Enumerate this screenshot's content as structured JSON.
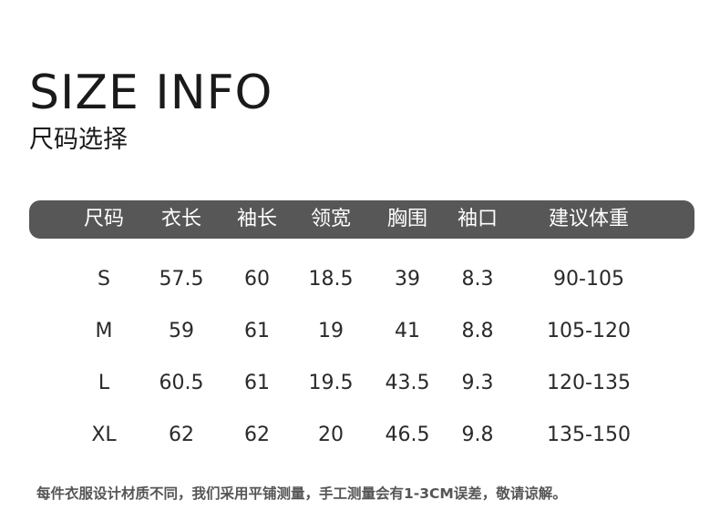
{
  "title": "SIZE INFO",
  "subtitle": "尺码选择",
  "table": {
    "headers": [
      "尺码",
      "衣长",
      "袖长",
      "领宽",
      "胸围",
      "袖口",
      "建议体重"
    ],
    "rows": [
      [
        "S",
        "57.5",
        "60",
        "18.5",
        "39",
        "8.3",
        "90-105"
      ],
      [
        "M",
        "59",
        "61",
        "19",
        "41",
        "8.8",
        "105-120"
      ],
      [
        "L",
        "60.5",
        "61",
        "19.5",
        "43.5",
        "9.3",
        "120-135"
      ],
      [
        "XL",
        "62",
        "62",
        "20",
        "46.5",
        "9.8",
        "135-150"
      ]
    ]
  },
  "note": "每件衣服设计材质不同，我们采用平铺测量，手工测量会有1-3CM误差，敬请谅解。",
  "colors": {
    "header_bg": "#575757",
    "header_text": "#ffffff",
    "text": "#222222"
  }
}
